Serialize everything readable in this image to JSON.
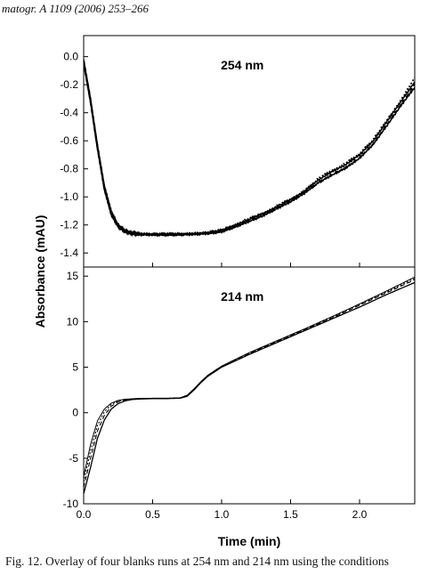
{
  "header": {
    "text": "matogr. A 1109 (2006) 253–266"
  },
  "caption": {
    "text": "Fig. 12.  Overlay of four blanks runs at 254 nm and 214 nm using the conditions"
  },
  "chart_data": [
    {
      "type": "line",
      "title": "254 nm",
      "xlabel": "Time (min)",
      "ylabel": "Absorbance (mAU)",
      "xlim": [
        0.0,
        2.4
      ],
      "ylim": [
        -1.5,
        0.15
      ],
      "x_ticks": [
        "0.0",
        "0.5",
        "1.0",
        "1.5",
        "2.0"
      ],
      "y_ticks": [
        "0.0",
        "-0.2",
        "-0.4",
        "-0.6",
        "-0.8",
        "-1.0",
        "-1.2",
        "-1.4"
      ],
      "grid": false,
      "series": [
        {
          "x": [
            0,
            0.05,
            0.1,
            0.15,
            0.2,
            0.25,
            0.3,
            0.35,
            0.4,
            0.5,
            0.6,
            0.7,
            0.8,
            0.9,
            1.0,
            1.1,
            1.2,
            1.3,
            1.4,
            1.5,
            1.6,
            1.7,
            1.8,
            1.9,
            2.0,
            2.1,
            2.2,
            2.3,
            2.4
          ],
          "y": [
            -0.02,
            -0.3,
            -0.63,
            -0.92,
            -1.1,
            -1.2,
            -1.24,
            -1.255,
            -1.26,
            -1.265,
            -1.265,
            -1.265,
            -1.26,
            -1.255,
            -1.24,
            -1.2,
            -1.16,
            -1.12,
            -1.07,
            -1.02,
            -0.96,
            -0.88,
            -0.82,
            -0.77,
            -0.7,
            -0.6,
            -0.46,
            -0.32,
            -0.18
          ]
        },
        {
          "x": [
            0,
            0.05,
            0.1,
            0.15,
            0.2,
            0.25,
            0.3,
            0.35,
            0.4,
            0.5,
            0.6,
            0.7,
            0.8,
            0.9,
            1.0,
            1.1,
            1.2,
            1.3,
            1.4,
            1.5,
            1.6,
            1.7,
            1.8,
            1.9,
            2.0,
            2.1,
            2.2,
            2.3,
            2.4
          ],
          "y": [
            -0.04,
            -0.32,
            -0.65,
            -0.94,
            -1.12,
            -1.21,
            -1.245,
            -1.26,
            -1.265,
            -1.27,
            -1.27,
            -1.27,
            -1.265,
            -1.26,
            -1.245,
            -1.21,
            -1.17,
            -1.13,
            -1.08,
            -1.03,
            -0.97,
            -0.9,
            -0.84,
            -0.79,
            -0.72,
            -0.62,
            -0.48,
            -0.34,
            -0.2
          ]
        },
        {
          "x": [
            0,
            0.05,
            0.1,
            0.15,
            0.2,
            0.25,
            0.3,
            0.35,
            0.4,
            0.5,
            0.6,
            0.7,
            0.8,
            0.9,
            1.0,
            1.1,
            1.2,
            1.3,
            1.4,
            1.5,
            1.6,
            1.7,
            1.8,
            1.9,
            2.0,
            2.1,
            2.2,
            2.3,
            2.4
          ],
          "y": [
            -0.03,
            -0.31,
            -0.64,
            -0.93,
            -1.11,
            -1.205,
            -1.24,
            -1.255,
            -1.26,
            -1.265,
            -1.262,
            -1.262,
            -1.258,
            -1.252,
            -1.235,
            -1.195,
            -1.155,
            -1.115,
            -1.065,
            -1.015,
            -0.955,
            -0.87,
            -0.81,
            -0.76,
            -0.69,
            -0.59,
            -0.45,
            -0.31,
            -0.15
          ]
        },
        {
          "x": [
            0,
            0.05,
            0.1,
            0.15,
            0.2,
            0.25,
            0.3,
            0.35,
            0.4,
            0.5,
            0.6,
            0.7,
            0.8,
            0.9,
            1.0,
            1.1,
            1.2,
            1.3,
            1.4,
            1.5,
            1.6,
            1.7,
            1.8,
            1.9,
            2.0,
            2.1,
            2.2,
            2.3,
            2.4
          ],
          "y": [
            -0.05,
            -0.33,
            -0.66,
            -0.95,
            -1.13,
            -1.215,
            -1.25,
            -1.265,
            -1.27,
            -1.272,
            -1.272,
            -1.27,
            -1.268,
            -1.262,
            -1.25,
            -1.215,
            -1.175,
            -1.135,
            -1.085,
            -1.035,
            -0.975,
            -0.9,
            -0.845,
            -0.795,
            -0.725,
            -0.625,
            -0.49,
            -0.35,
            -0.22
          ]
        }
      ]
    },
    {
      "type": "line",
      "title": "214 nm",
      "xlabel": "Time (min)",
      "ylabel": "Absorbance (mAU)",
      "xlim": [
        0.0,
        2.4
      ],
      "ylim": [
        -10,
        16
      ],
      "x_ticks": [
        "0.0",
        "0.5",
        "1.0",
        "1.5",
        "2.0"
      ],
      "y_ticks": [
        "15",
        "10",
        "5",
        "0",
        "-5",
        "-10"
      ],
      "grid": false,
      "series": [
        {
          "x": [
            0,
            0.05,
            0.1,
            0.15,
            0.2,
            0.25,
            0.3,
            0.35,
            0.4,
            0.5,
            0.6,
            0.7,
            0.75,
            0.8,
            0.85,
            0.9,
            1.0,
            1.2,
            1.4,
            1.6,
            1.8,
            2.0,
            2.2,
            2.4
          ],
          "y": [
            -8.9,
            -6.0,
            -2.8,
            -0.8,
            0.4,
            1.0,
            1.3,
            1.45,
            1.5,
            1.55,
            1.55,
            1.6,
            1.8,
            2.5,
            3.3,
            4.0,
            5.0,
            6.4,
            7.7,
            9.0,
            10.3,
            11.6,
            13.0,
            14.3
          ]
        },
        {
          "x": [
            0,
            0.05,
            0.1,
            0.15,
            0.2,
            0.25,
            0.3,
            0.35,
            0.4,
            0.5,
            0.6,
            0.7,
            0.75,
            0.8,
            0.85,
            0.9,
            1.0,
            1.2,
            1.4,
            1.6,
            1.8,
            2.0,
            2.2,
            2.4
          ],
          "y": [
            -8.2,
            -5.0,
            -2.0,
            -0.3,
            0.7,
            1.2,
            1.4,
            1.5,
            1.55,
            1.57,
            1.57,
            1.62,
            1.85,
            2.55,
            3.35,
            4.05,
            5.05,
            6.5,
            7.8,
            9.1,
            10.4,
            11.8,
            13.2,
            14.6
          ]
        },
        {
          "x": [
            0,
            0.05,
            0.1,
            0.15,
            0.2,
            0.25,
            0.3,
            0.35,
            0.4,
            0.5,
            0.6,
            0.7,
            0.75,
            0.8,
            0.85,
            0.9,
            1.0,
            1.2,
            1.4,
            1.6,
            1.8,
            2.0,
            2.2,
            2.4
          ],
          "y": [
            -7.6,
            -4.2,
            -1.4,
            0.1,
            0.9,
            1.3,
            1.45,
            1.52,
            1.56,
            1.58,
            1.58,
            1.63,
            1.9,
            2.6,
            3.4,
            4.1,
            5.1,
            6.55,
            7.85,
            9.15,
            10.5,
            11.9,
            13.3,
            14.75
          ]
        },
        {
          "x": [
            0,
            0.05,
            0.1,
            0.15,
            0.2,
            0.25,
            0.3,
            0.35,
            0.4,
            0.5,
            0.6,
            0.7,
            0.75,
            0.8,
            0.85,
            0.9,
            1.0,
            1.2,
            1.4,
            1.6,
            1.8,
            2.0,
            2.2,
            2.4
          ],
          "y": [
            -7.0,
            -3.5,
            -0.9,
            0.4,
            1.05,
            1.35,
            1.48,
            1.53,
            1.57,
            1.59,
            1.59,
            1.64,
            1.92,
            2.62,
            3.42,
            4.12,
            5.12,
            6.6,
            7.9,
            9.2,
            10.55,
            11.95,
            13.4,
            14.9
          ]
        }
      ]
    }
  ]
}
